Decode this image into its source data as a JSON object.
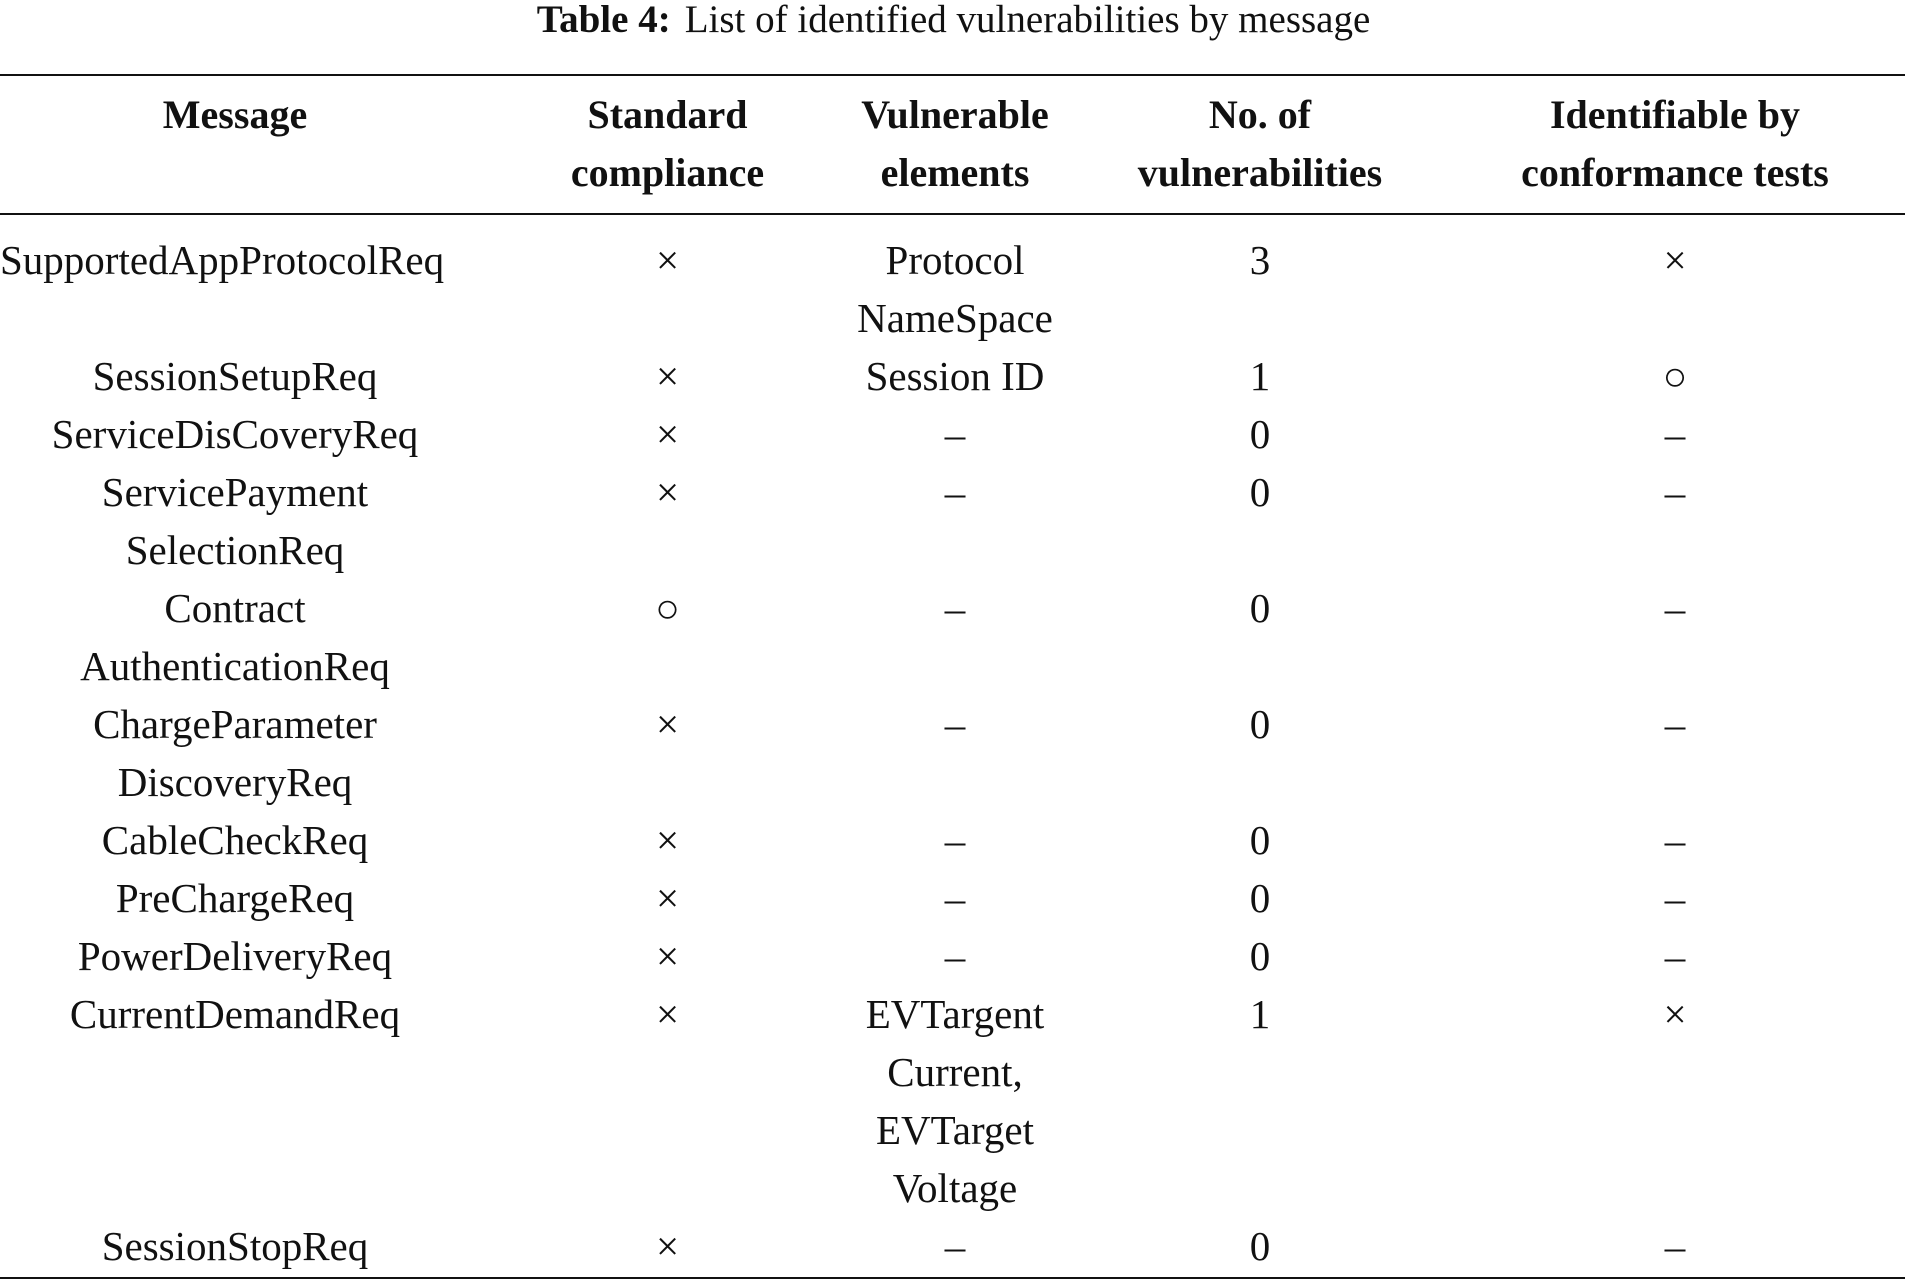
{
  "caption": {
    "label": "Table 4:",
    "text": "List of identified vulnerabilities by message"
  },
  "headers": [
    "Message",
    "Standard\ncompliance",
    "Vulnerable\nelements",
    "No. of\nvulnerabilities",
    "Identifiable by\nconformance tests"
  ],
  "rows": [
    {
      "message": "SupportedAppProtocolReq",
      "compliance": "×",
      "elements": "Protocol\nNameSpace",
      "count": "3",
      "identifiable": "×"
    },
    {
      "message": "SessionSetupReq",
      "compliance": "×",
      "elements": "Session ID",
      "count": "1",
      "identifiable": "○"
    },
    {
      "message": "ServiceDisCoveryReq",
      "compliance": "×",
      "elements": "–",
      "count": "0",
      "identifiable": "–"
    },
    {
      "message": "ServicePayment\nSelectionReq",
      "compliance": "×",
      "elements": "–",
      "count": "0",
      "identifiable": "–"
    },
    {
      "message": "Contract\nAuthenticationReq",
      "compliance": "○",
      "elements": "–",
      "count": "0",
      "identifiable": "–"
    },
    {
      "message": "ChargeParameter\nDiscoveryReq",
      "compliance": "×",
      "elements": "–",
      "count": "0",
      "identifiable": "–"
    },
    {
      "message": "CableCheckReq",
      "compliance": "×",
      "elements": "–",
      "count": "0",
      "identifiable": "–"
    },
    {
      "message": "PreChargeReq",
      "compliance": "×",
      "elements": "–",
      "count": "0",
      "identifiable": "–"
    },
    {
      "message": "PowerDeliveryReq",
      "compliance": "×",
      "elements": "–",
      "count": "0",
      "identifiable": "–"
    },
    {
      "message": "CurrentDemandReq",
      "compliance": "×",
      "elements": "EVTargent\nCurrent,\nEVTarget\nVoltage",
      "count": "1",
      "identifiable": "×"
    },
    {
      "message": "SessionStopReq",
      "compliance": "×",
      "elements": "–",
      "count": "0",
      "identifiable": "–"
    }
  ]
}
